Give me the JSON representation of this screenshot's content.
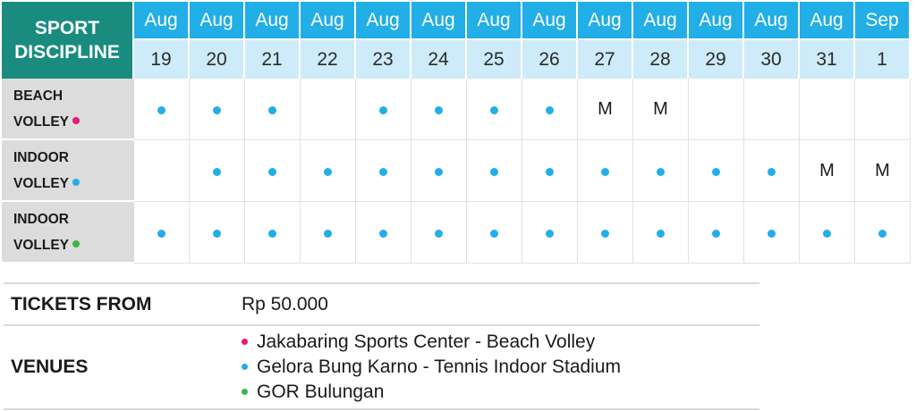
{
  "header": {
    "corner_line1": "SPORT",
    "corner_line2": "DISCIPLINE"
  },
  "dates": [
    {
      "month": "Aug",
      "day": "19"
    },
    {
      "month": "Aug",
      "day": "20"
    },
    {
      "month": "Aug",
      "day": "21"
    },
    {
      "month": "Aug",
      "day": "22"
    },
    {
      "month": "Aug",
      "day": "23"
    },
    {
      "month": "Aug",
      "day": "24"
    },
    {
      "month": "Aug",
      "day": "25"
    },
    {
      "month": "Aug",
      "day": "26"
    },
    {
      "month": "Aug",
      "day": "27"
    },
    {
      "month": "Aug",
      "day": "28"
    },
    {
      "month": "Aug",
      "day": "29"
    },
    {
      "month": "Aug",
      "day": "30"
    },
    {
      "month": "Aug",
      "day": "31"
    },
    {
      "month": "Sep",
      "day": "1"
    }
  ],
  "colors": {
    "header_teal": "#1a8c7f",
    "month_blue": "#22aee6",
    "day_lightblue": "#cdebf9",
    "label_gray": "#dcdcdc",
    "pink": "#e6197f",
    "blue": "#22aee6",
    "green": "#3cb54a"
  },
  "sports": [
    {
      "line1": "BEACH",
      "line2": "VOLLEY",
      "bullet_color": "#e6197f",
      "cells": [
        "dot",
        "dot",
        "dot",
        "",
        "dot",
        "dot",
        "dot",
        "dot",
        "M",
        "M",
        "",
        "",
        "",
        ""
      ]
    },
    {
      "line1": "INDOOR",
      "line2": "VOLLEY",
      "bullet_color": "#22aee6",
      "cells": [
        "",
        "dot",
        "dot",
        "dot",
        "dot",
        "dot",
        "dot",
        "dot",
        "dot",
        "dot",
        "dot",
        "dot",
        "M",
        "M"
      ]
    },
    {
      "line1": "INDOOR",
      "line2": "VOLLEY",
      "bullet_color": "#3cb54a",
      "cells": [
        "dot",
        "dot",
        "dot",
        "dot",
        "dot",
        "dot",
        "dot",
        "dot",
        "dot",
        "dot",
        "dot",
        "dot",
        "dot",
        "dot"
      ]
    }
  ],
  "tickets": {
    "label": "TICKETS FROM",
    "value": "Rp 50.000"
  },
  "venues": {
    "label": "VENUES",
    "items": [
      {
        "name": "Jakabaring Sports Center - Beach Volley",
        "color": "#e6197f"
      },
      {
        "name": "Gelora Bung Karno - Tennis Indoor Stadium",
        "color": "#22aee6"
      },
      {
        "name": "GOR Bulungan",
        "color": "#3cb54a"
      }
    ]
  }
}
